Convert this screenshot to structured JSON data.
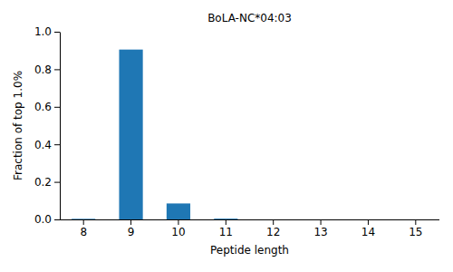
{
  "chart_data": {
    "type": "bar",
    "title": "BoLA-NC*04:03",
    "x_label": "Peptide length",
    "y_label": "Fraction of top 1.0%",
    "categories": [
      "8",
      "9",
      "10",
      "11",
      "12",
      "13",
      "14",
      "15"
    ],
    "values": [
      0.003,
      0.905,
      0.085,
      0.004,
      0,
      0,
      0,
      0
    ],
    "color": "#1f77b4",
    "ylim": [
      0,
      1
    ],
    "yticks": [
      {
        "value": 0,
        "label": "0.0"
      },
      0.2,
      0.4,
      0.6,
      0.8,
      {
        "value": 1,
        "label": "1.0"
      }
    ],
    "grid": false
  }
}
